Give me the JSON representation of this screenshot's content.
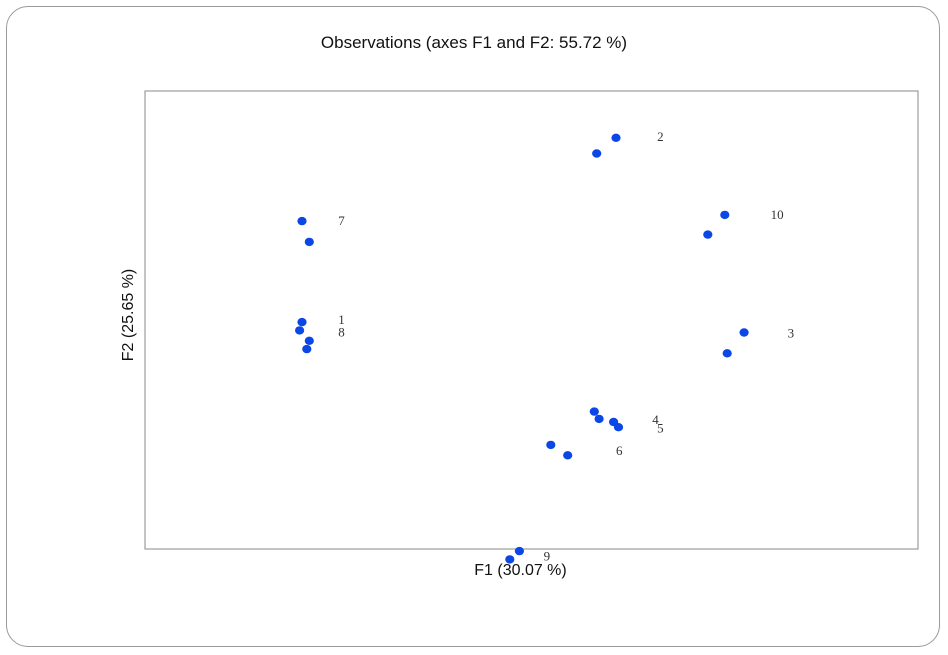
{
  "chart_data": {
    "type": "scatter",
    "title": "Observations (axes F1 and F2: 55.72 %)",
    "xlabel": "F1 (30.07 %)",
    "ylabel": "F2 (25.65 %)",
    "series": [
      {
        "color": "#0a47e6",
        "points": [
          {
            "x": -0.95,
            "y": 0.95
          },
          {
            "x": -0.92,
            "y": 0.75
          },
          {
            "x": -0.95,
            "y": -0.02
          },
          {
            "x": -0.96,
            "y": -0.1
          },
          {
            "x": -0.92,
            "y": -0.2
          },
          {
            "x": -0.93,
            "y": -0.28
          },
          {
            "x": 0.27,
            "y": 1.6
          },
          {
            "x": 0.35,
            "y": 1.75
          },
          {
            "x": 0.73,
            "y": 0.82
          },
          {
            "x": 0.8,
            "y": 1.01
          },
          {
            "x": 0.81,
            "y": -0.32
          },
          {
            "x": 0.88,
            "y": -0.12
          },
          {
            "x": 0.26,
            "y": -0.88
          },
          {
            "x": 0.28,
            "y": -0.95
          },
          {
            "x": 0.34,
            "y": -0.98
          },
          {
            "x": 0.36,
            "y": -1.03
          },
          {
            "x": 0.08,
            "y": -1.2
          },
          {
            "x": 0.15,
            "y": -1.3
          },
          {
            "x": -0.09,
            "y": -2.3
          },
          {
            "x": -0.05,
            "y": -2.22
          }
        ]
      }
    ],
    "point_labels": [
      {
        "text": "7",
        "x": -0.8,
        "y": 0.95
      },
      {
        "text": "1",
        "x": -0.8,
        "y": 0.0
      },
      {
        "text": "8",
        "x": -0.8,
        "y": -0.12
      },
      {
        "text": "2",
        "x": 0.52,
        "y": 1.76
      },
      {
        "text": "10",
        "x": 0.99,
        "y": 1.01
      },
      {
        "text": "3",
        "x": 1.06,
        "y": -0.13
      },
      {
        "text": "4",
        "x": 0.5,
        "y": -0.96
      },
      {
        "text": "5",
        "x": 0.52,
        "y": -1.04
      },
      {
        "text": "6",
        "x": 0.35,
        "y": -1.26
      },
      {
        "text": "9",
        "x": 0.05,
        "y": -2.27
      }
    ],
    "xlim": [
      -1.6,
      1.6
    ],
    "ylim": [
      -2.2,
      2.2
    ],
    "grid": false
  }
}
